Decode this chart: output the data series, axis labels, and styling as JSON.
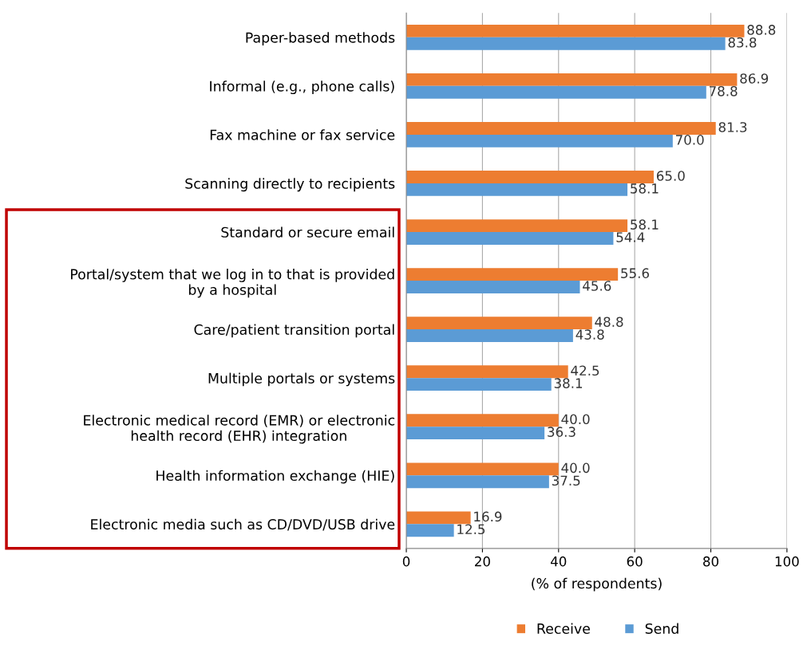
{
  "chart_data": {
    "type": "bar",
    "orientation": "horizontal",
    "xlabel": "(% of respondents)",
    "categories": [
      "Paper-based methods",
      "Informal (e.g., phone calls)",
      "Fax machine or fax service",
      "Scanning directly to recipients",
      "Standard or secure email",
      "Portal/system that we log in to that is provided\nby a hospital",
      "Care/patient transition portal",
      "Multiple portals or systems",
      "Electronic medical record (EMR) or electronic\nhealth record (EHR) integration",
      "Health information exchange (HIE)",
      "Electronic media such as CD/DVD/USB drive"
    ],
    "series": [
      {
        "name": "Receive",
        "color": "#ed7d31",
        "values": [
          88.8,
          86.9,
          81.3,
          65.0,
          58.1,
          55.6,
          48.8,
          42.5,
          40.0,
          40.0,
          16.9
        ],
        "value_labels": [
          "88.8",
          "86.9",
          "81.3",
          "65.0",
          "58.1",
          "55.6",
          "48.8",
          "42.5",
          "40.0",
          "40.0",
          "16.9"
        ]
      },
      {
        "name": "Send",
        "color": "#5b9bd5",
        "values": [
          83.8,
          78.8,
          70.0,
          58.1,
          54.4,
          45.6,
          43.8,
          38.1,
          36.3,
          37.5,
          12.5
        ],
        "value_labels": [
          "83.8",
          "78.8",
          "70.0",
          "58.1",
          "54.4",
          "45.6",
          "43.8",
          "38.1",
          "36.3",
          "37.5",
          "12.5"
        ]
      }
    ],
    "xlim": [
      0,
      100
    ],
    "xticks": [
      0,
      20,
      40,
      60,
      80,
      100
    ],
    "grid": "x",
    "legend": "bottom"
  }
}
